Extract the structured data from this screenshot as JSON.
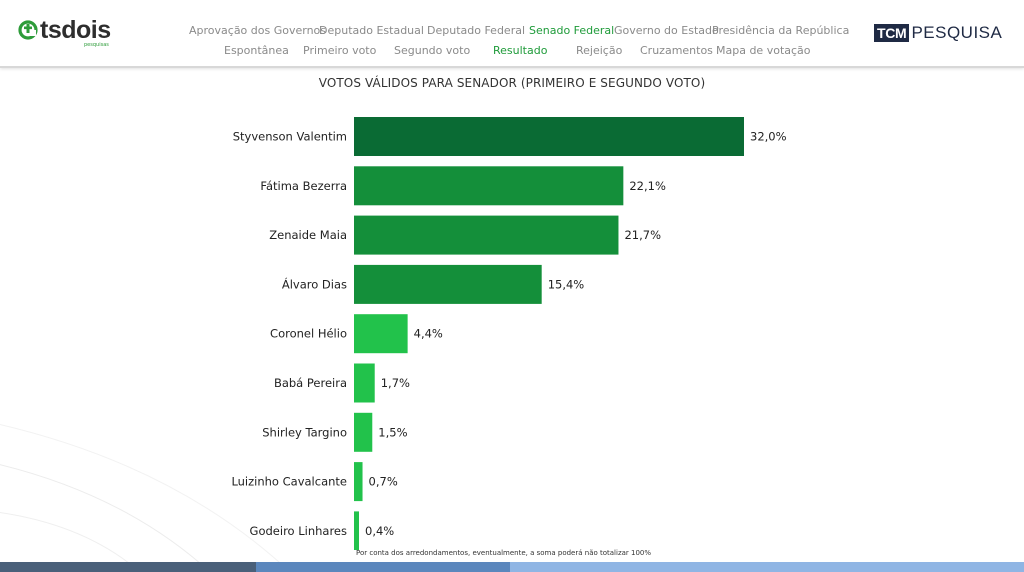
{
  "header": {
    "logo_text": "tsdois",
    "logo_sub": "pesquisas",
    "brand_box": "TCM",
    "brand_text": "PESQUISA",
    "nav_row1": [
      {
        "label": "Aprovação dos Governos",
        "active": false
      },
      {
        "label": "Deputado Estadual",
        "active": false
      },
      {
        "label": "Deputado Federal",
        "active": false
      },
      {
        "label": "Senado Federal",
        "active": true
      },
      {
        "label": "Governo do Estado",
        "active": false
      },
      {
        "label": "Presidência da República",
        "active": false
      }
    ],
    "nav_row2": [
      {
        "label": "Espontânea",
        "active": false
      },
      {
        "label": "Primeiro voto",
        "active": false
      },
      {
        "label": "Segundo voto",
        "active": false
      },
      {
        "label": "Resultado",
        "active": true
      },
      {
        "label": "Rejeição",
        "active": false
      },
      {
        "label": "Cruzamentos",
        "active": false
      },
      {
        "label": "Mapa de votação",
        "active": false
      }
    ]
  },
  "colors": {
    "bar_dark": "#0a6b34",
    "bar_mid": "#148f3a",
    "bar_light": "#22c24b",
    "active_nav": "#1f9b3a",
    "band": [
      "#4a607a",
      "#5b87bd",
      "#8fb5e4"
    ]
  },
  "chart_data": {
    "type": "bar",
    "orientation": "horizontal",
    "title": "VOTOS VÁLIDOS PARA SENADOR (PRIMEIRO E SEGUNDO VOTO)",
    "categories": [
      "Styvenson Valentim",
      "Fátima Bezerra",
      "Zenaide Maia",
      "Álvaro Dias",
      "Coronel Hélio",
      "Babá Pereira",
      "Shirley Targino",
      "Luizinho Cavalcante",
      "Godeiro Linhares"
    ],
    "values": [
      32.0,
      22.1,
      21.7,
      15.4,
      4.4,
      1.7,
      1.5,
      0.7,
      0.4
    ],
    "value_labels": [
      "32,0%",
      "22,1%",
      "21,7%",
      "15,4%",
      "4,4%",
      "1,7%",
      "1,5%",
      "0,7%",
      "0,4%"
    ],
    "xlim": [
      0,
      32.0
    ],
    "grid": false,
    "legend": "none",
    "unit": "%"
  },
  "footnote": "Por conta dos arredondamentos, eventualmente, a soma poderá não totalizar 100%"
}
